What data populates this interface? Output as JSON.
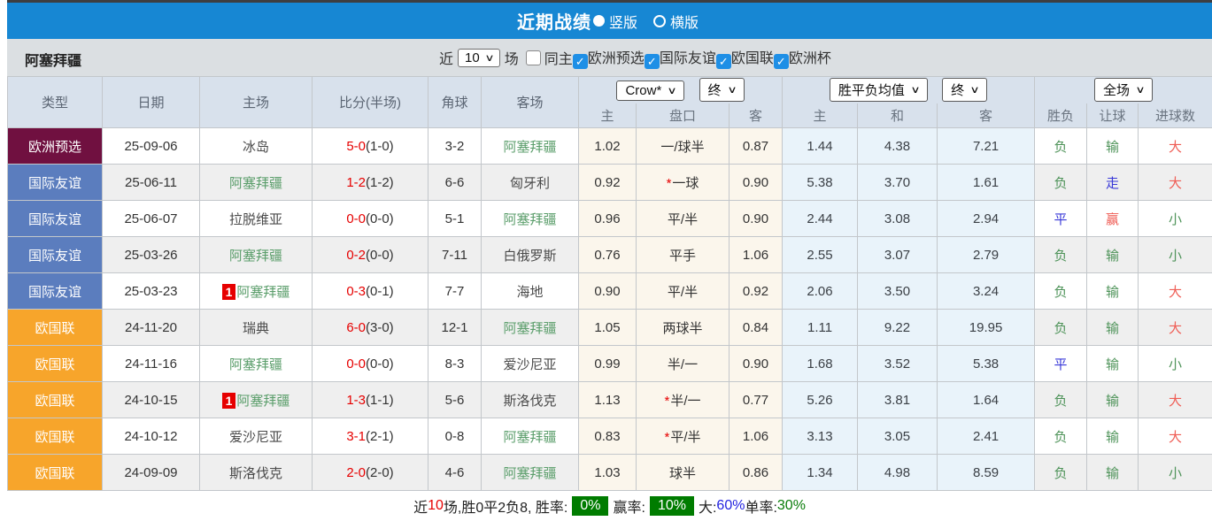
{
  "title_bar": {
    "title": "近期战绩",
    "radio_vertical": "竖版",
    "radio_horizontal": "横版"
  },
  "filter_bar": {
    "team": "阿塞拜疆",
    "near_label": "近",
    "count_value": "10",
    "games_label": "场",
    "same_home_label": "同主",
    "comp_filters": [
      {
        "label": "欧洲预选",
        "checked": true
      },
      {
        "label": "国际友谊",
        "checked": true
      },
      {
        "label": "欧国联",
        "checked": true
      },
      {
        "label": "欧洲杯",
        "checked": true
      }
    ]
  },
  "colors": {
    "accent_blue": "#1787d3",
    "type_euro_qualifier": "#701040",
    "type_friendly": "#5b7dbe",
    "type_nations_league": "#f7a52b",
    "team_green": "#5b9e6b",
    "score_red": "#e60000",
    "odds_bg": "#fbf6ec",
    "avg_bg": "#e9f3fa",
    "summary_badge_green": "#007c00"
  },
  "table": {
    "static_headers": [
      "类型",
      "日期",
      "主场",
      "比分(半场)",
      "角球",
      "客场"
    ],
    "odds_group": {
      "select1": "Crow*",
      "select2": "终",
      "sub": [
        "主",
        "盘口",
        "客"
      ]
    },
    "avg_group": {
      "select1": "胜平负均值",
      "select2": "终",
      "sub": [
        "主",
        "和",
        "客"
      ]
    },
    "result_group": {
      "select1": "全场",
      "sub": [
        "胜负",
        "让球",
        "进球数"
      ]
    },
    "rows": [
      {
        "type": "欧洲预选",
        "type_color": "#701040",
        "date": "25-09-06",
        "home": "冰岛",
        "home_is_team": false,
        "home_badge": "",
        "score": "5-0",
        "half": "(1-0)",
        "corner": "3-2",
        "away": "阿塞拜疆",
        "away_is_team": true,
        "away_badge": "",
        "odds_home": "1.02",
        "handicap": "一/球半",
        "handicap_star": false,
        "odds_away": "0.87",
        "avg_win": "1.44",
        "avg_draw": "4.38",
        "avg_lose": "7.21",
        "r_wdl": "负",
        "r_wdl_c": "green",
        "r_hcp": "输",
        "r_hcp_c": "green",
        "r_goal": "大",
        "r_goal_c": "red"
      },
      {
        "type": "国际友谊",
        "type_color": "#5b7dbe",
        "date": "25-06-11",
        "home": "阿塞拜疆",
        "home_is_team": true,
        "home_badge": "",
        "score": "1-2",
        "half": "(1-2)",
        "corner": "6-6",
        "away": "匈牙利",
        "away_is_team": false,
        "away_badge": "",
        "odds_home": "0.92",
        "handicap": "一球",
        "handicap_star": true,
        "odds_away": "0.90",
        "avg_win": "5.38",
        "avg_draw": "3.70",
        "avg_lose": "1.61",
        "r_wdl": "负",
        "r_wdl_c": "green",
        "r_hcp": "走",
        "r_hcp_c": "blue",
        "r_goal": "大",
        "r_goal_c": "red"
      },
      {
        "type": "国际友谊",
        "type_color": "#5b7dbe",
        "date": "25-06-07",
        "home": "拉脱维亚",
        "home_is_team": false,
        "home_badge": "",
        "score": "0-0",
        "half": "(0-0)",
        "corner": "5-1",
        "away": "阿塞拜疆",
        "away_is_team": true,
        "away_badge": "",
        "odds_home": "0.96",
        "handicap": "平/半",
        "handicap_star": false,
        "odds_away": "0.90",
        "avg_win": "2.44",
        "avg_draw": "3.08",
        "avg_lose": "2.94",
        "r_wdl": "平",
        "r_wdl_c": "blue",
        "r_hcp": "赢",
        "r_hcp_c": "red",
        "r_goal": "小",
        "r_goal_c": "green"
      },
      {
        "type": "国际友谊",
        "type_color": "#5b7dbe",
        "date": "25-03-26",
        "home": "阿塞拜疆",
        "home_is_team": true,
        "home_badge": "",
        "score": "0-2",
        "half": "(0-0)",
        "corner": "7-11",
        "away": "白俄罗斯",
        "away_is_team": false,
        "away_badge": "",
        "odds_home": "0.76",
        "handicap": "平手",
        "handicap_star": false,
        "odds_away": "1.06",
        "avg_win": "2.55",
        "avg_draw": "3.07",
        "avg_lose": "2.79",
        "r_wdl": "负",
        "r_wdl_c": "green",
        "r_hcp": "输",
        "r_hcp_c": "green",
        "r_goal": "小",
        "r_goal_c": "green"
      },
      {
        "type": "国际友谊",
        "type_color": "#5b7dbe",
        "date": "25-03-23",
        "home": "阿塞拜疆",
        "home_is_team": true,
        "home_badge": "1",
        "score": "0-3",
        "half": "(0-1)",
        "corner": "7-7",
        "away": "海地",
        "away_is_team": false,
        "away_badge": "",
        "odds_home": "0.90",
        "handicap": "平/半",
        "handicap_star": false,
        "odds_away": "0.92",
        "avg_win": "2.06",
        "avg_draw": "3.50",
        "avg_lose": "3.24",
        "r_wdl": "负",
        "r_wdl_c": "green",
        "r_hcp": "输",
        "r_hcp_c": "green",
        "r_goal": "大",
        "r_goal_c": "red"
      },
      {
        "type": "欧国联",
        "type_color": "#f7a52b",
        "date": "24-11-20",
        "home": "瑞典",
        "home_is_team": false,
        "home_badge": "",
        "score": "6-0",
        "half": "(3-0)",
        "corner": "12-1",
        "away": "阿塞拜疆",
        "away_is_team": true,
        "away_badge": "",
        "odds_home": "1.05",
        "handicap": "两球半",
        "handicap_star": false,
        "odds_away": "0.84",
        "avg_win": "1.11",
        "avg_draw": "9.22",
        "avg_lose": "19.95",
        "r_wdl": "负",
        "r_wdl_c": "green",
        "r_hcp": "输",
        "r_hcp_c": "green",
        "r_goal": "大",
        "r_goal_c": "red"
      },
      {
        "type": "欧国联",
        "type_color": "#f7a52b",
        "date": "24-11-16",
        "home": "阿塞拜疆",
        "home_is_team": true,
        "home_badge": "",
        "score": "0-0",
        "half": "(0-0)",
        "corner": "8-3",
        "away": "爱沙尼亚",
        "away_is_team": false,
        "away_badge": "",
        "odds_home": "0.99",
        "handicap": "半/一",
        "handicap_star": false,
        "odds_away": "0.90",
        "avg_win": "1.68",
        "avg_draw": "3.52",
        "avg_lose": "5.38",
        "r_wdl": "平",
        "r_wdl_c": "blue",
        "r_hcp": "输",
        "r_hcp_c": "green",
        "r_goal": "小",
        "r_goal_c": "green"
      },
      {
        "type": "欧国联",
        "type_color": "#f7a52b",
        "date": "24-10-15",
        "home": "阿塞拜疆",
        "home_is_team": true,
        "home_badge": "1",
        "score": "1-3",
        "half": "(1-1)",
        "corner": "5-6",
        "away": "斯洛伐克",
        "away_is_team": false,
        "away_badge": "",
        "odds_home": "1.13",
        "handicap": "半/一",
        "handicap_star": true,
        "odds_away": "0.77",
        "avg_win": "5.26",
        "avg_draw": "3.81",
        "avg_lose": "1.64",
        "r_wdl": "负",
        "r_wdl_c": "green",
        "r_hcp": "输",
        "r_hcp_c": "green",
        "r_goal": "大",
        "r_goal_c": "red"
      },
      {
        "type": "欧国联",
        "type_color": "#f7a52b",
        "date": "24-10-12",
        "home": "爱沙尼亚",
        "home_is_team": false,
        "home_badge": "",
        "score": "3-1",
        "half": "(2-1)",
        "corner": "0-8",
        "away": "阿塞拜疆",
        "away_is_team": true,
        "away_badge": "",
        "odds_home": "0.83",
        "handicap": "平/半",
        "handicap_star": true,
        "odds_away": "1.06",
        "avg_win": "3.13",
        "avg_draw": "3.05",
        "avg_lose": "2.41",
        "r_wdl": "负",
        "r_wdl_c": "green",
        "r_hcp": "输",
        "r_hcp_c": "green",
        "r_goal": "大",
        "r_goal_c": "red"
      },
      {
        "type": "欧国联",
        "type_color": "#f7a52b",
        "date": "24-09-09",
        "home": "斯洛伐克",
        "home_is_team": false,
        "home_badge": "",
        "score": "2-0",
        "half": "(2-0)",
        "corner": "4-6",
        "away": "阿塞拜疆",
        "away_is_team": true,
        "away_badge": "",
        "odds_home": "1.03",
        "handicap": "球半",
        "handicap_star": false,
        "odds_away": "0.86",
        "avg_win": "1.34",
        "avg_draw": "4.98",
        "avg_lose": "8.59",
        "r_wdl": "负",
        "r_wdl_c": "green",
        "r_hcp": "输",
        "r_hcp_c": "green",
        "r_goal": "小",
        "r_goal_c": "green"
      }
    ]
  },
  "summary": {
    "segments": [
      {
        "text": "近",
        "style": "dark"
      },
      {
        "text": "10",
        "style": "red"
      },
      {
        "text": "场,胜0平2负8, 胜率:",
        "style": "dark"
      },
      {
        "text": "0%",
        "style": "badge"
      },
      {
        "text": "赢率:",
        "style": "dark"
      },
      {
        "text": "10%",
        "style": "badge"
      },
      {
        "text": "大:",
        "style": "dark"
      },
      {
        "text": "60%",
        "style": "blue"
      },
      {
        "text": " 单率:",
        "style": "dark"
      },
      {
        "text": "30%",
        "style": "green"
      }
    ]
  }
}
